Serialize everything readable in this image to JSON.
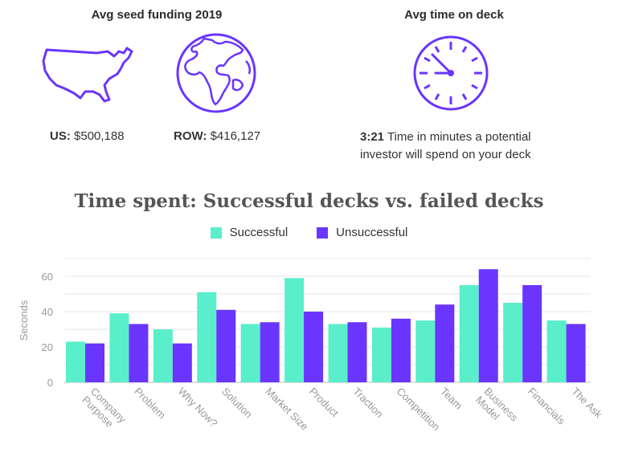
{
  "header": {
    "funding_title": "Avg seed funding 2019",
    "deck_title": "Avg time on deck",
    "us_label": "US:",
    "us_value": "$500,188",
    "row_label": "ROW:",
    "row_value": "$416,127",
    "deck_time": "3:21",
    "deck_desc_line1": "Time in minutes a potential",
    "deck_desc_line2": "investor will spend on your deck"
  },
  "icons": {
    "us_map": "us-map-icon",
    "globe": "globe-icon",
    "clock": "clock-icon",
    "color": "#6a35ff"
  },
  "chart_data": {
    "type": "bar",
    "title": "Time spent: Successful decks vs. failed decks",
    "ylabel": "Seconds",
    "xlabel": "",
    "ylim": [
      0,
      70
    ],
    "yticks": [
      0,
      20,
      40,
      60
    ],
    "grid": true,
    "legend_position": "top-center",
    "categories": [
      [
        "Company",
        "Purpose"
      ],
      [
        "Problem"
      ],
      [
        "Why Now?"
      ],
      [
        "Solution"
      ],
      [
        "Market Size"
      ],
      [
        "Product"
      ],
      [
        "Traction"
      ],
      [
        "Competition"
      ],
      [
        "Team"
      ],
      [
        "Business",
        "Model"
      ],
      [
        "Financials"
      ],
      [
        "The Ask"
      ]
    ],
    "series": [
      {
        "name": "Successful",
        "color": "#5beecb",
        "values": [
          23,
          39,
          30,
          51,
          33,
          59,
          33,
          31,
          35,
          55,
          45,
          35
        ]
      },
      {
        "name": "Unsuccessful",
        "color": "#6a35ff",
        "values": [
          22,
          33,
          22,
          41,
          34,
          40,
          34,
          36,
          44,
          64,
          55,
          33
        ]
      }
    ]
  }
}
